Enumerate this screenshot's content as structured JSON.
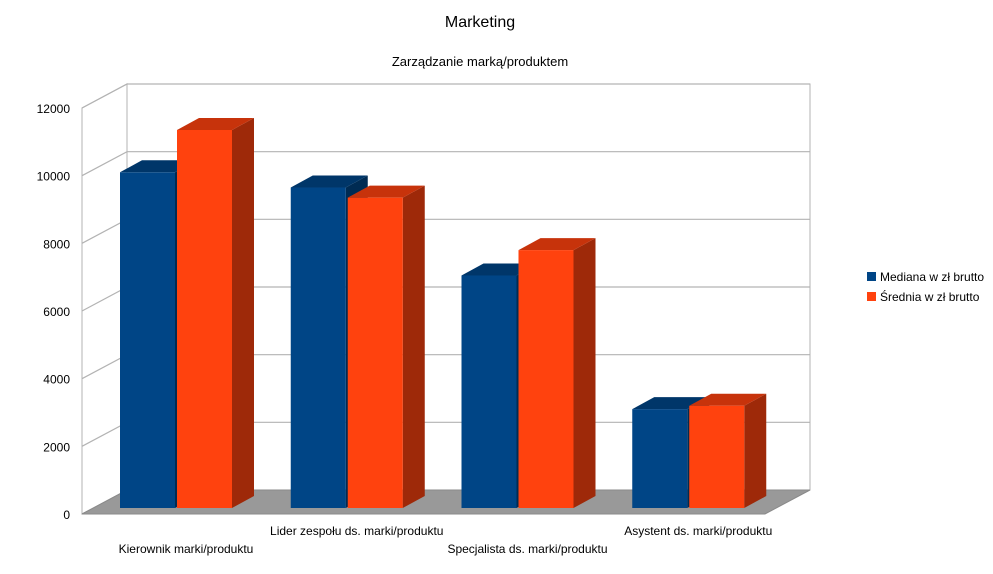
{
  "chart_data": {
    "type": "bar",
    "title": "Marketing",
    "subtitle": "Zarządzanie marką/produktem",
    "categories": [
      "Kierownik marki/produktu",
      "Lider zespołu ds. marki/produktu",
      "Specjalista ds. marki/produktu",
      "Asystent ds. marki/produktu"
    ],
    "series": [
      {
        "name": "Mediana w zł brutto",
        "values": [
          10100,
          9650,
          7050,
          3100
        ],
        "color": "#004586"
      },
      {
        "name": "Średnia w zł brutto",
        "values": [
          11350,
          9350,
          7800,
          3200
        ],
        "color": "#ff420e"
      }
    ],
    "ylim": [
      0,
      12000
    ],
    "yticks": [
      0,
      2000,
      4000,
      6000,
      8000,
      10000,
      12000
    ],
    "grid": true,
    "legend_position": "right",
    "three_d": true
  }
}
